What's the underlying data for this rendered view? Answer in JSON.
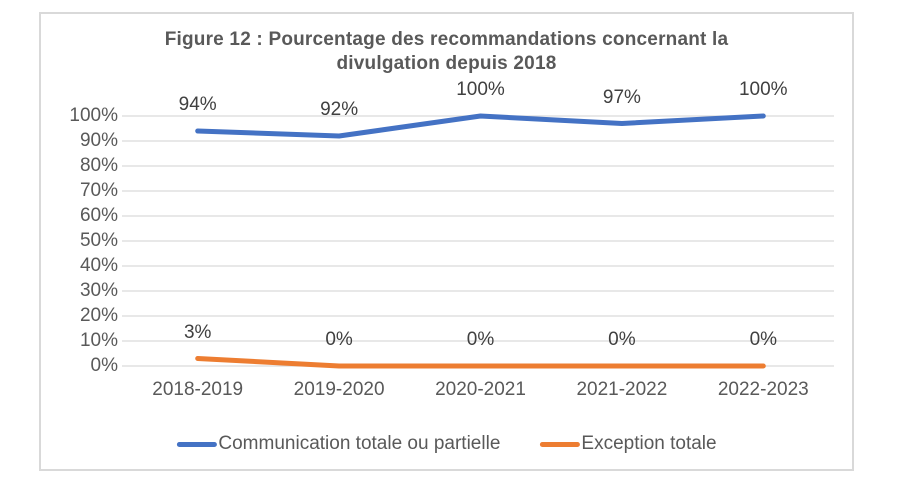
{
  "chart_data": {
    "type": "line",
    "title": "Figure 12 : Pourcentage des recommandations concernant la divulgation depuis 2018",
    "title_lines": [
      "Figure 12 : Pourcentage des recommandations concernant la",
      "divulgation depuis 2018"
    ],
    "categories": [
      "2018-2019",
      "2019-2020",
      "2020-2021",
      "2021-2022",
      "2022-2023"
    ],
    "series": [
      {
        "name": "Communication totale ou partielle",
        "color": "#4472C4",
        "values": [
          94,
          92,
          100,
          97,
          100
        ],
        "data_labels": [
          "94%",
          "92%",
          "100%",
          "97%",
          "100%"
        ]
      },
      {
        "name": "Exception totale",
        "color": "#ED7D31",
        "values": [
          3,
          0,
          0,
          0,
          0
        ],
        "data_labels": [
          "3%",
          "0%",
          "0%",
          "0%",
          "0%"
        ]
      }
    ],
    "xlabel": "",
    "ylabel": "",
    "ylim": [
      0,
      100
    ],
    "yticks": [
      0,
      10,
      20,
      30,
      40,
      50,
      60,
      70,
      80,
      90,
      100
    ],
    "ytick_labels": [
      "0%",
      "10%",
      "20%",
      "30%",
      "40%",
      "50%",
      "60%",
      "70%",
      "80%",
      "90%",
      "100%"
    ],
    "grid": true,
    "legend_position": "bottom",
    "colors": {
      "grid": "#D9D9D9",
      "axis": "#D9D9D9",
      "frame_border": "#D9D9D9",
      "title_text": "#595959",
      "tick_text": "#595959",
      "data_label_text": "#404040"
    }
  }
}
